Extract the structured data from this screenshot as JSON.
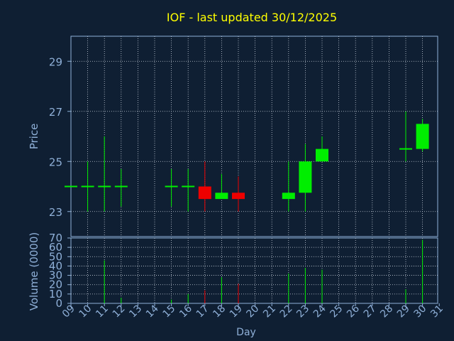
{
  "colors": {
    "background": "#0f1f33",
    "title": "#ffff00",
    "axis_text": "#8fb0d8",
    "frame": "#8fb0d8",
    "grid": "#c8d0dc",
    "up": "#00ee00",
    "down": "#ee0000",
    "flat": "#00ee00"
  },
  "chart_data": {
    "type": "candlestick",
    "title": "IOF - last updated 30/12/2025",
    "xlabel": "Day",
    "price_panel": {
      "ylabel": "Price",
      "ylim": [
        22,
        30
      ],
      "yticks": [
        23,
        25,
        27,
        29
      ],
      "grid": true
    },
    "volume_panel": {
      "ylabel": "Volume (0000)",
      "ylim": [
        0,
        70
      ],
      "yticks": [
        0,
        10,
        20,
        30,
        40,
        50,
        60,
        70
      ],
      "grid": true
    },
    "x_tick_labels": [
      "09",
      "10",
      "11",
      "12",
      "13",
      "14",
      "15",
      "16",
      "17",
      "18",
      "19",
      "20",
      "21",
      "22",
      "23",
      "24",
      "25",
      "26",
      "27",
      "28",
      "29",
      "30",
      "31"
    ],
    "ohlc": [
      {
        "day": "09",
        "open": 24.0,
        "high": 24.0,
        "low": 24.0,
        "close": 24.0
      },
      {
        "day": "10",
        "open": 24.0,
        "high": 25.0,
        "low": 23.0,
        "close": 24.0
      },
      {
        "day": "11",
        "open": 24.0,
        "high": 26.0,
        "low": 23.0,
        "close": 24.0
      },
      {
        "day": "12",
        "open": 24.0,
        "high": 24.7,
        "low": 23.2,
        "close": 24.0
      },
      {
        "day": "15",
        "open": 24.0,
        "high": 24.7,
        "low": 23.2,
        "close": 24.0
      },
      {
        "day": "16",
        "open": 24.0,
        "high": 24.7,
        "low": 23.0,
        "close": 24.0
      },
      {
        "day": "17",
        "open": 24.0,
        "high": 25.0,
        "low": 23.0,
        "close": 23.5
      },
      {
        "day": "18",
        "open": 23.5,
        "high": 24.5,
        "low": 23.5,
        "close": 23.75
      },
      {
        "day": "19",
        "open": 23.75,
        "high": 24.4,
        "low": 23.0,
        "close": 23.5
      },
      {
        "day": "22",
        "open": 23.5,
        "high": 25.0,
        "low": 23.0,
        "close": 23.75
      },
      {
        "day": "23",
        "open": 23.75,
        "high": 25.7,
        "low": 23.0,
        "close": 25.0
      },
      {
        "day": "24",
        "open": 25.0,
        "high": 26.0,
        "low": 25.0,
        "close": 25.5
      },
      {
        "day": "29",
        "open": 25.5,
        "high": 27.0,
        "low": 25.0,
        "close": 25.5
      },
      {
        "day": "30",
        "open": 25.5,
        "high": 26.7,
        "low": 25.4,
        "close": 26.5
      }
    ],
    "volume": [
      {
        "day": "10",
        "value": 0
      },
      {
        "day": "11",
        "value": 46
      },
      {
        "day": "12",
        "value": 6
      },
      {
        "day": "15",
        "value": 4
      },
      {
        "day": "16",
        "value": 10
      },
      {
        "day": "17",
        "value": 14
      },
      {
        "day": "18",
        "value": 28
      },
      {
        "day": "19",
        "value": 21
      },
      {
        "day": "22",
        "value": 32
      },
      {
        "day": "23",
        "value": 38
      },
      {
        "day": "24",
        "value": 36
      },
      {
        "day": "29",
        "value": 15
      },
      {
        "day": "30",
        "value": 68
      }
    ]
  }
}
